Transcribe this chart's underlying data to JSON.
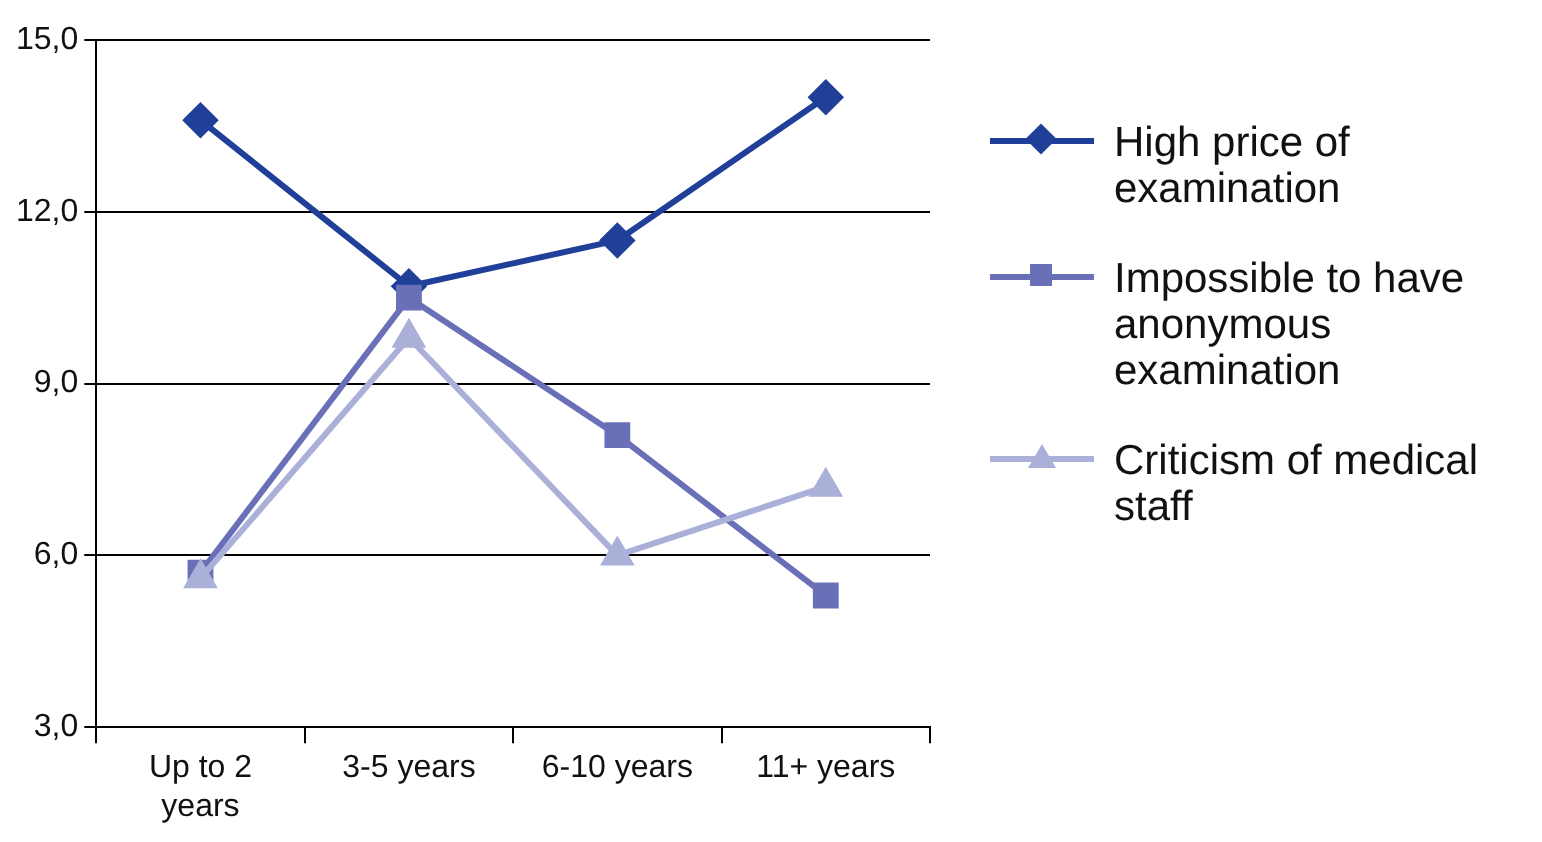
{
  "chart_data": {
    "type": "line",
    "categories": [
      "Up to 2 years",
      "3-5 years",
      "6-10 years",
      "11+ years"
    ],
    "series": [
      {
        "name": "High price of examination",
        "color": "#1f3f99",
        "marker": "diamond",
        "values": [
          13.6,
          10.7,
          11.5,
          14.0
        ]
      },
      {
        "name": "Impossible to have anonymous examination",
        "color": "#6a70b8",
        "marker": "square",
        "values": [
          5.7,
          10.5,
          8.1,
          5.3
        ]
      },
      {
        "name": "Criticism of medical staff",
        "color": "#aab0d8",
        "marker": "triangle",
        "values": [
          5.6,
          9.8,
          6.0,
          7.2
        ]
      }
    ],
    "ylim": [
      3,
      15
    ],
    "yticks": [
      {
        "value": 3,
        "label": "3,0"
      },
      {
        "value": 6,
        "label": "6,0"
      },
      {
        "value": 9,
        "label": "9,0"
      },
      {
        "value": 12,
        "label": "12,0"
      },
      {
        "value": 15,
        "label": "15,0"
      }
    ],
    "grid": "y",
    "legend": "right",
    "line_style": "solid"
  }
}
